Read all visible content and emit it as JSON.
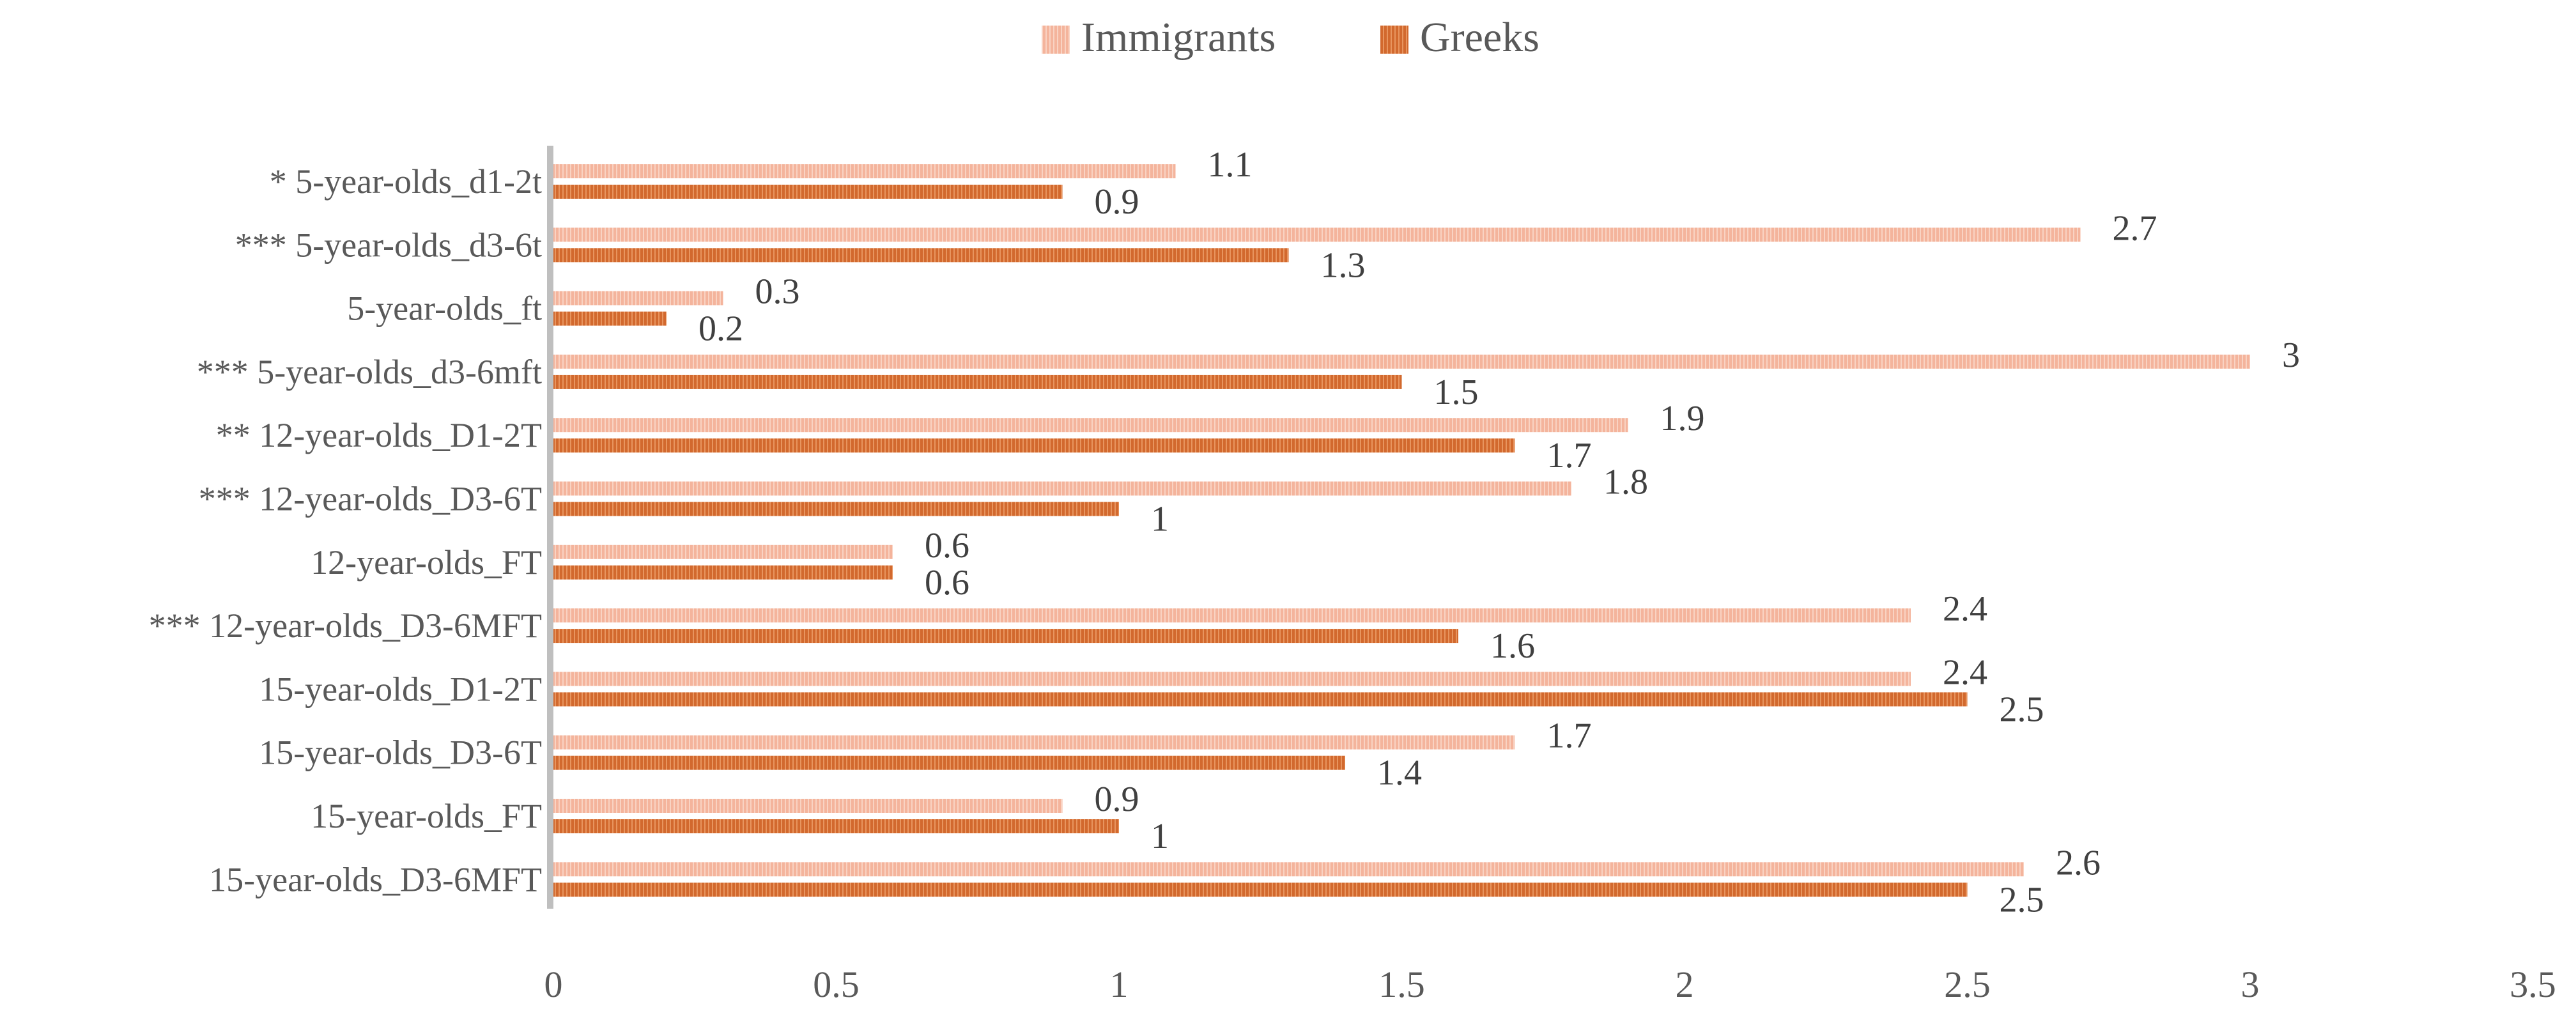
{
  "chart_data": {
    "type": "bar",
    "orientation": "horizontal",
    "title": "",
    "xlabel": "",
    "ylabel": "",
    "xlim": [
      0,
      3.5
    ],
    "xticks": [
      "0",
      "0.5",
      "1",
      "1.5",
      "2",
      "2.5",
      "3",
      "3.5"
    ],
    "grid": false,
    "legend_position": "top",
    "categories": [
      "* 5-year-olds_d1-2t",
      "*** 5-year-olds_d3-6t",
      "5-year-olds_ft",
      "*** 5-year-olds_d3-6mft",
      "** 12-year-olds_D1-2T",
      "*** 12-year-olds_D3-6T",
      "12-year-olds_FT",
      "*** 12-year-olds_D3-6MFT",
      "15-year-olds_D1-2T",
      "15-year-olds_D3-6T",
      "15-year-olds_FT",
      "15-year-olds_D3-6MFT"
    ],
    "series": [
      {
        "name": "Immigrants",
        "color": "#f4b49c",
        "values": [
          1.1,
          2.7,
          0.3,
          3,
          1.9,
          1.8,
          0.6,
          2.4,
          2.4,
          1.7,
          0.9,
          2.6
        ],
        "labels": [
          "1.1",
          "2.7",
          "0.3",
          "3",
          "1.9",
          "1.8",
          "0.6",
          "2.4",
          "2.4",
          "1.7",
          "0.9",
          "2.6"
        ]
      },
      {
        "name": "Greeks",
        "color": "#d2692e",
        "values": [
          0.9,
          1.3,
          0.2,
          1.5,
          1.7,
          1,
          0.6,
          1.6,
          2.5,
          1.4,
          1,
          2.5
        ],
        "labels": [
          "0.9",
          "1.3",
          "0.2",
          "1.5",
          "1.7",
          "1",
          "0.6",
          "1.6",
          "2.5",
          "1.4",
          "1",
          "2.5"
        ]
      }
    ]
  }
}
